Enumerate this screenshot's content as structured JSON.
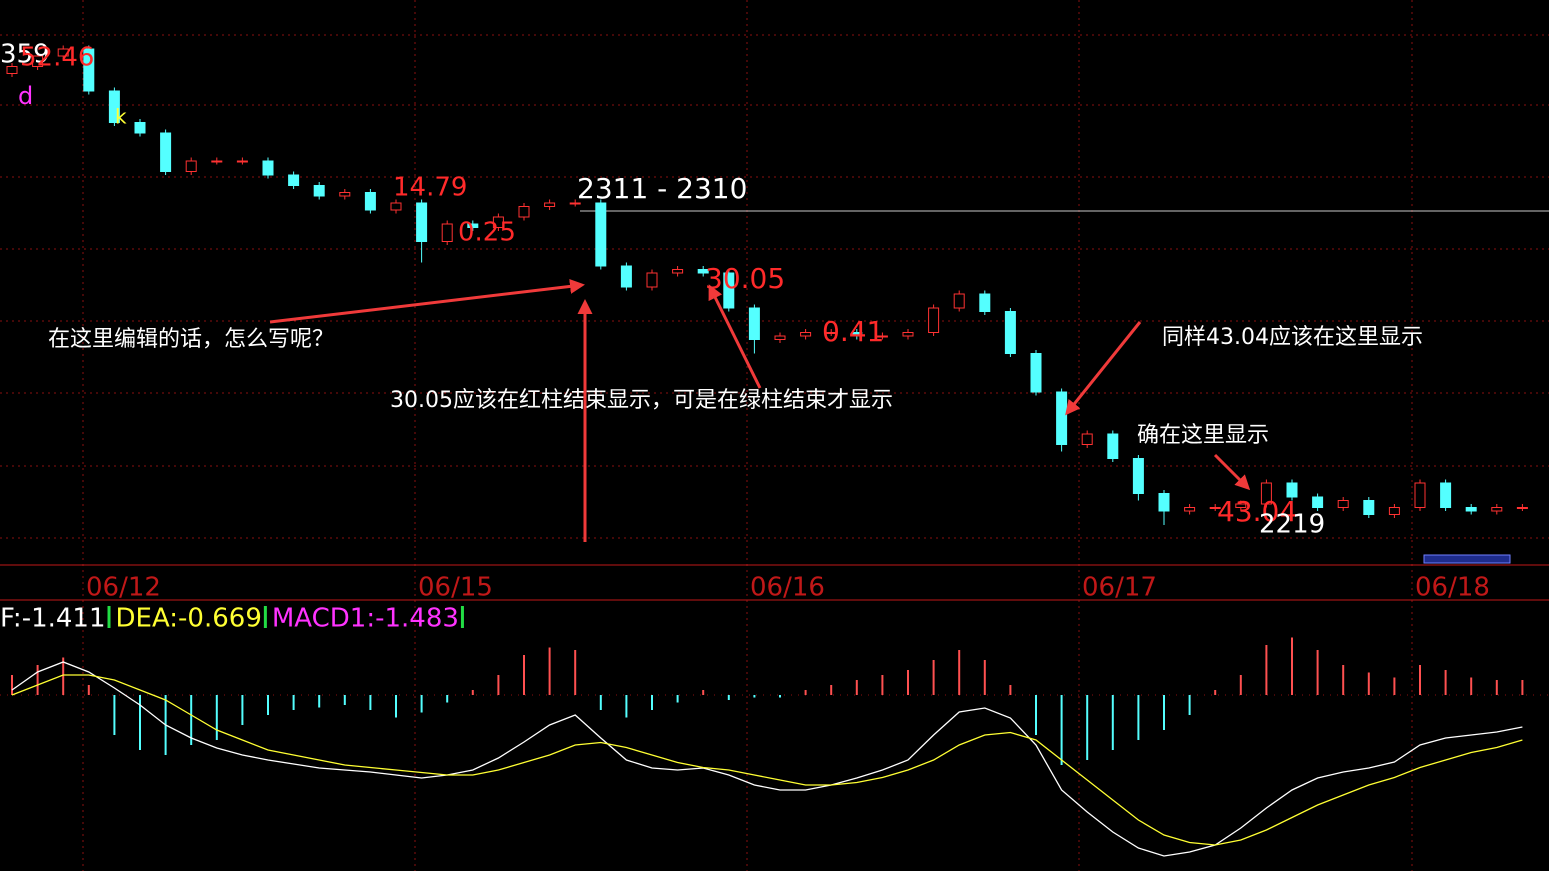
{
  "chart_data": [
    {
      "type": "candlestick",
      "ylim": [
        2211,
        2371
      ],
      "up_color": "#ff3232",
      "down_color": "#54ffff",
      "open": [
        2350,
        2352,
        2355,
        2357,
        2345,
        2336,
        2333,
        2322,
        2325,
        2325,
        2325,
        2321,
        2318,
        2315,
        2316,
        2311,
        2313,
        2302,
        2307,
        2306,
        2309,
        2312,
        2313,
        2313,
        2295,
        2289,
        2293,
        2294,
        2293,
        2283,
        2274,
        2275,
        2276,
        2276,
        2275,
        2275,
        2276,
        2283,
        2287,
        2282,
        2270,
        2259,
        2244,
        2247,
        2240,
        2230,
        2225,
        2226,
        2226,
        2227,
        2233,
        2229,
        2226,
        2228,
        2224,
        2226,
        2233,
        2226,
        2225,
        2226
      ],
      "high": [
        2353,
        2356,
        2358,
        2358,
        2346,
        2337,
        2334,
        2326,
        2326,
        2326,
        2326,
        2322,
        2319,
        2317,
        2317,
        2314,
        2314,
        2308,
        2308,
        2310,
        2313,
        2314,
        2314,
        2314,
        2296,
        2294,
        2295,
        2295,
        2294,
        2284,
        2276,
        2277,
        2277,
        2277,
        2276,
        2277,
        2284,
        2288,
        2288,
        2283,
        2271,
        2260,
        2248,
        2248,
        2241,
        2231,
        2227,
        2227,
        2228,
        2234,
        2234,
        2230,
        2229,
        2229,
        2227,
        2234,
        2234,
        2227,
        2227,
        2227
      ],
      "low": [
        2349,
        2351,
        2354,
        2344,
        2335,
        2332,
        2321,
        2321,
        2324,
        2324,
        2320,
        2317,
        2314,
        2314,
        2310,
        2310,
        2296,
        2301,
        2305,
        2305,
        2308,
        2311,
        2312,
        2294,
        2288,
        2288,
        2292,
        2292,
        2282,
        2270,
        2273,
        2274,
        2275,
        2274,
        2274,
        2274,
        2275,
        2282,
        2281,
        2269,
        2258,
        2242,
        2243,
        2239,
        2228,
        2221,
        2224,
        2225,
        2225,
        2226,
        2228,
        2225,
        2225,
        2223,
        2223,
        2225,
        2225,
        2224,
        2224,
        2225
      ],
      "close": [
        2352,
        2355,
        2357,
        2345,
        2336,
        2333,
        2322,
        2325,
        2325,
        2325,
        2321,
        2318,
        2315,
        2316,
        2311,
        2313,
        2302,
        2307,
        2306,
        2309,
        2312,
        2313,
        2313,
        2295,
        2289,
        2293,
        2294,
        2293,
        2283,
        2274,
        2275,
        2276,
        2276,
        2275,
        2275,
        2276,
        2283,
        2287,
        2282,
        2270,
        2259,
        2244,
        2247,
        2240,
        2230,
        2225,
        2226,
        2226,
        2227,
        2233,
        2229,
        2226,
        2228,
        2224,
        2226,
        2233,
        2226,
        2225,
        2226,
        2226
      ],
      "x_labels": [
        "06/12",
        "06/15",
        "06/16",
        "06/17",
        "06/18"
      ],
      "annotations": [
        {
          "text": "359",
          "color": "#ffffff"
        },
        {
          "text": "52.46",
          "color": "#ff2a2a"
        },
        {
          "text": "d",
          "color": "#ff33ff"
        },
        {
          "text": "k",
          "color": "#ffff33"
        },
        {
          "text": "14.79",
          "color": "#ff2a2a"
        },
        {
          "text": "0.25",
          "color": "#ff2a2a"
        },
        {
          "text": "2311 - 2310",
          "color": "#ffffff"
        },
        {
          "text": "30.05",
          "color": "#ff2a2a"
        },
        {
          "text": "0.41",
          "color": "#ff2a2a"
        },
        {
          "text": "43.04",
          "color": "#ff2a2a"
        },
        {
          "text": "2219",
          "color": "#ffffff"
        },
        {
          "text": "在这里编辑的话，怎么写呢？",
          "color": "#ffffff"
        },
        {
          "text": "30.05应该在红柱结束显示，可是在绿柱结束才显示",
          "color": "#ffffff"
        },
        {
          "text": "同样43.04应该在这里显示",
          "color": "#ffffff"
        },
        {
          "text": "确在这里显示",
          "color": "#ffffff"
        }
      ]
    },
    {
      "type": "macd",
      "ylim": [
        -7.04,
        3.6
      ],
      "up_color": "#ff5050",
      "down_color": "#54ffff",
      "series": [
        {
          "name": "F:-1.411",
          "color": "#ffffff",
          "values": [
            0.2,
            0.92,
            1.32,
            0.92,
            0.28,
            -0.4,
            -1.2,
            -1.72,
            -2.12,
            -2.4,
            -2.6,
            -2.76,
            -2.92,
            -3.0,
            -3.08,
            -3.2,
            -3.32,
            -3.2,
            -3.0,
            -2.52,
            -1.88,
            -1.2,
            -0.8,
            -1.72,
            -2.6,
            -2.92,
            -3.0,
            -2.92,
            -3.2,
            -3.6,
            -3.8,
            -3.8,
            -3.6,
            -3.32,
            -3.0,
            -2.6,
            -1.6,
            -0.68,
            -0.52,
            -0.92,
            -2.0,
            -3.8,
            -4.68,
            -5.48,
            -6.12,
            -6.44,
            -6.28,
            -6.0,
            -5.32,
            -4.52,
            -3.8,
            -3.32,
            -3.08,
            -2.92,
            -2.68,
            -2.0,
            -1.72,
            -1.6,
            -1.48,
            -1.28
          ]
        },
        {
          "name": "DEA:-0.669",
          "color": "#ffff33",
          "values": [
            0,
            0.4,
            0.8,
            0.8,
            0.6,
            0.2,
            -0.2,
            -0.8,
            -1.4,
            -1.8,
            -2.2,
            -2.4,
            -2.6,
            -2.8,
            -2.9,
            -3.0,
            -3.1,
            -3.2,
            -3.2,
            -3.0,
            -2.7,
            -2.4,
            -2.0,
            -1.9,
            -2.1,
            -2.4,
            -2.7,
            -2.9,
            -3.0,
            -3.2,
            -3.4,
            -3.6,
            -3.6,
            -3.5,
            -3.3,
            -3.0,
            -2.6,
            -2.0,
            -1.6,
            -1.5,
            -1.8,
            -2.6,
            -3.4,
            -4.2,
            -5.0,
            -5.6,
            -5.9,
            -6.0,
            -5.8,
            -5.4,
            -4.9,
            -4.4,
            -4.0,
            -3.6,
            -3.3,
            -2.9,
            -2.6,
            -2.3,
            -2.1,
            -1.8
          ]
        },
        {
          "name": "MACD1:-1.483",
          "color": "#ff33ff",
          "values": [
            0.8,
            1.2,
            1.5,
            0.4,
            -1.6,
            -2.2,
            -2.4,
            -2.0,
            -1.8,
            -1.2,
            -0.8,
            -0.6,
            -0.5,
            -0.4,
            -0.6,
            -0.9,
            -0.7,
            -0.3,
            0.2,
            0.8,
            1.6,
            1.9,
            1.8,
            -0.6,
            -0.9,
            -0.6,
            -0.3,
            0.2,
            -0.2,
            -0.1,
            -0.1,
            0.2,
            0.4,
            0.6,
            0.8,
            1.0,
            1.4,
            1.8,
            1.4,
            0.4,
            -1.6,
            -2.8,
            -2.6,
            -2.2,
            -1.8,
            -1.4,
            -0.8,
            0.2,
            0.8,
            2.0,
            2.3,
            1.8,
            1.2,
            0.9,
            0.7,
            1.2,
            1.0,
            0.7,
            0.6,
            0.6
          ]
        }
      ]
    }
  ]
}
